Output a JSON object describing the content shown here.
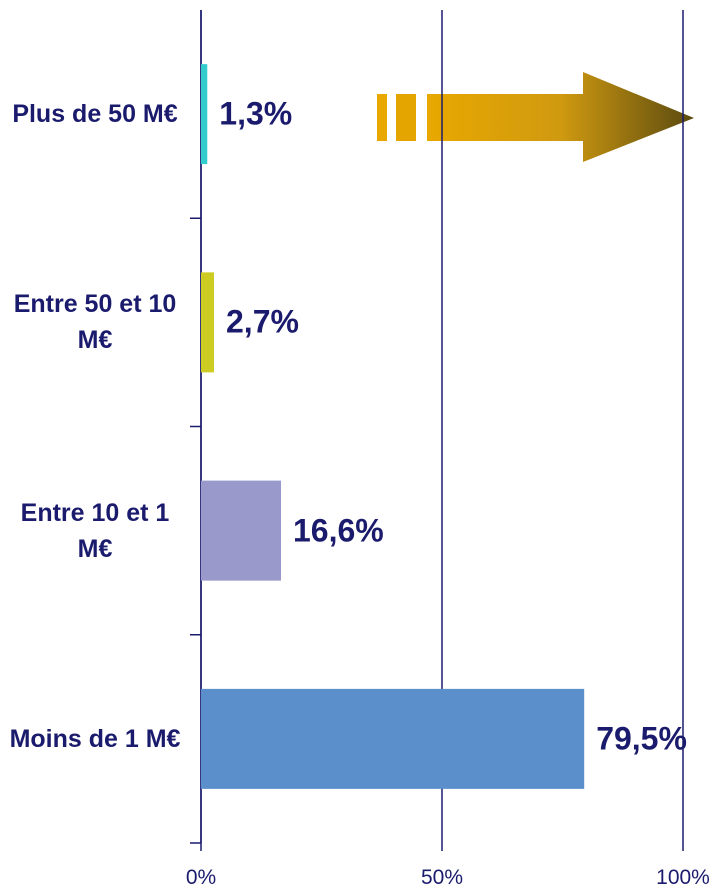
{
  "chart_data": {
    "type": "barh",
    "categories": [
      "Plus de 50 M€",
      "Entre 50 et 10 M€",
      "Entre 10 et 1 M€",
      "Moins de 1 M€"
    ],
    "values": [
      1.3,
      2.7,
      16.6,
      79.5
    ],
    "value_labels": [
      "1,3%",
      "2,7%",
      "16,6%",
      "79,5%"
    ],
    "colors": [
      "#33cccc",
      "#cccc22",
      "#9999cc",
      "#5b8fcc"
    ],
    "xlim": [
      0,
      100
    ],
    "xticks": [
      {
        "value": 0,
        "label": "0%"
      },
      {
        "value": 50,
        "label": "50%"
      },
      {
        "value": 100,
        "label": "100%"
      }
    ],
    "grid": true
  }
}
